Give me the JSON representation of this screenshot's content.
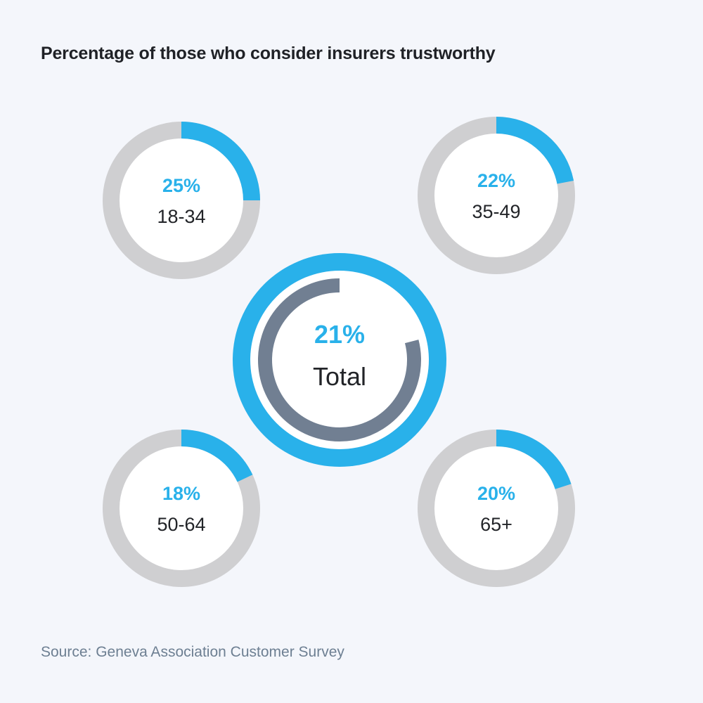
{
  "title": "Percentage of those who consider insurers trustworthy",
  "source": "Source: Geneva Association Customer Survey",
  "colors": {
    "accent": "#29b1ea",
    "track": "#cfcfd1",
    "total_arc": "#717f92",
    "inner_fill": "#ffffff",
    "label": "#222428",
    "background": "#f4f6fb"
  },
  "chart_data": {
    "type": "donut",
    "unit": "%",
    "total": {
      "label": "Total",
      "value": 21,
      "display": "21%"
    },
    "groups": [
      {
        "label": "18-34",
        "value": 25,
        "display": "25%"
      },
      {
        "label": "35-49",
        "value": 22,
        "display": "22%"
      },
      {
        "label": "50-64",
        "value": 18,
        "display": "18%"
      },
      {
        "label": "65+",
        "value": 20,
        "display": "20%"
      }
    ]
  }
}
